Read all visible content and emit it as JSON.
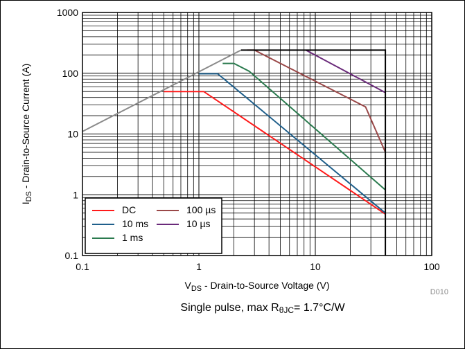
{
  "chart_data": {
    "type": "line",
    "xscale": "log",
    "yscale": "log",
    "xlim": [
      0.1,
      100
    ],
    "ylim": [
      0.1,
      1000
    ],
    "grid": true,
    "x_ticks": [
      "0.1",
      "1",
      "10",
      "100"
    ],
    "y_ticks": [
      "0.1",
      "1",
      "10",
      "100",
      "1000"
    ],
    "xlabel": {
      "prefix": "V",
      "sub": "DS",
      "suffix": " - Drain-to-Source Voltage (V)"
    },
    "ylabel": {
      "prefix": "I",
      "sub": "DS",
      "suffix": " - Drain-to-Source Current (A)"
    },
    "footnote": {
      "prefix": "Single pulse, max R",
      "sub": "θJC",
      "suffix": "= 1.7°C/W"
    },
    "code": "D010",
    "legend_position": "bottom-left",
    "legend_columns": [
      [
        "DC",
        "10 ms",
        "1 ms"
      ],
      [
        "100 µs",
        "10 µs"
      ]
    ],
    "series": [
      {
        "name": "DC",
        "color": "#ff1a1a",
        "points": [
          [
            0.5,
            50
          ],
          [
            1.1,
            50
          ],
          [
            40,
            0.48
          ]
        ]
      },
      {
        "name": "10 ms",
        "color": "#1f5f8b",
        "points": [
          [
            1.0,
            98
          ],
          [
            1.45,
            98
          ],
          [
            40,
            0.5
          ]
        ]
      },
      {
        "name": "1 ms",
        "color": "#2a7a4e",
        "points": [
          [
            1.6,
            145
          ],
          [
            2.0,
            145
          ],
          [
            2.7,
            108
          ],
          [
            40,
            1.2
          ]
        ]
      },
      {
        "name": "100 µs",
        "color": "#9a4848",
        "points": [
          [
            2.6,
            240
          ],
          [
            3.0,
            240
          ],
          [
            27,
            28
          ],
          [
            40,
            5
          ]
        ]
      },
      {
        "name": "10 µs",
        "color": "#6a2a7a",
        "points": [
          [
            8.3,
            240
          ],
          [
            40,
            48
          ]
        ]
      },
      {
        "name": "",
        "color": "#8a8a8a",
        "points": [
          [
            0.1,
            11
          ],
          [
            2.3,
            240
          ]
        ]
      },
      {
        "name": "",
        "color": "#000000",
        "points": [
          [
            2.3,
            240
          ],
          [
            40,
            240
          ],
          [
            40,
            0.1
          ]
        ]
      }
    ]
  }
}
